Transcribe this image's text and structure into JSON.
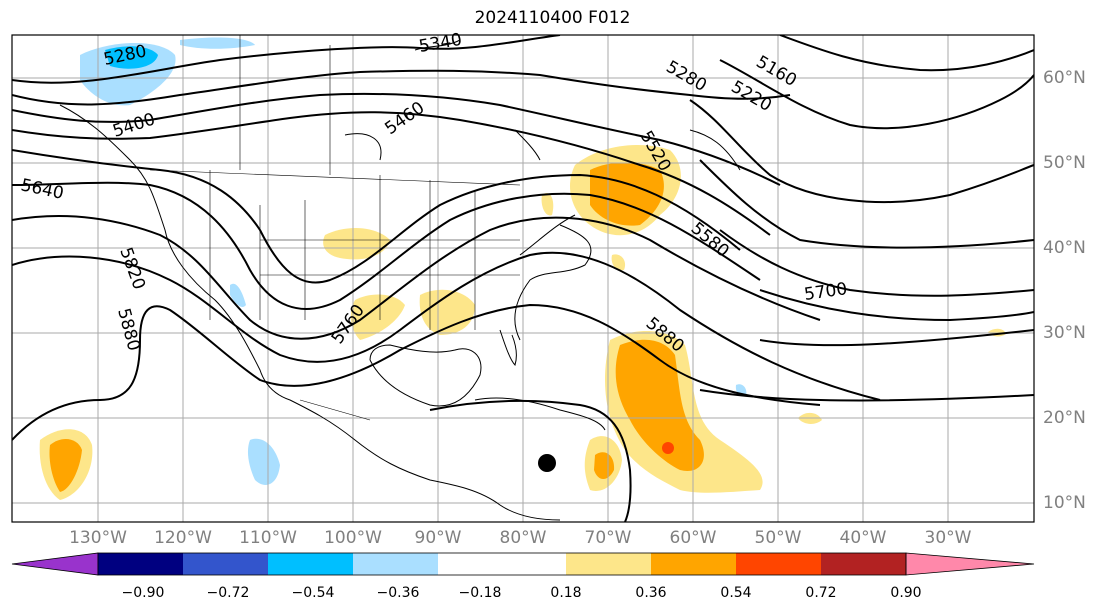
{
  "title": "2024110400 F012",
  "longitude_labels": [
    "130°W",
    "120°W",
    "110°W",
    "100°W",
    "90°W",
    "80°W",
    "70°W",
    "60°W",
    "50°W",
    "40°W",
    "30°W"
  ],
  "latitude_labels": [
    "60°N",
    "50°N",
    "40°N",
    "30°N",
    "20°N",
    "10°N"
  ],
  "contour_labels": [
    "5280",
    "5340",
    "5400",
    "5460",
    "5640",
    "5820",
    "5880",
    "5760",
    "5280",
    "5160",
    "5220",
    "5520",
    "5580",
    "5700",
    "5880"
  ],
  "colorbar": {
    "tick_labels": [
      "−0.90",
      "−0.72",
      "−0.54",
      "−0.36",
      "−0.18",
      "0.18",
      "0.36",
      "0.54",
      "0.72",
      "0.90"
    ],
    "colors": [
      "#9933cc",
      "#000080",
      "#3355cc",
      "#00bfff",
      "#aadfff",
      "#ffffff",
      "#fde68a",
      "#ffa500",
      "#ff4500",
      "#b22222",
      "#ff88aa"
    ]
  }
}
